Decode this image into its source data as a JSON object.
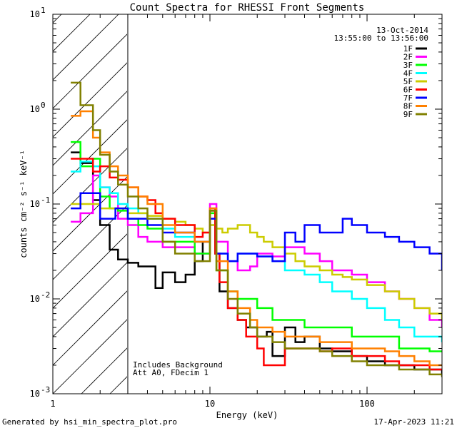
{
  "chart_data": {
    "type": "line",
    "step": true,
    "title": "Count Spectra for RHESSI Front Segments",
    "xlabel": "Energy (keV)",
    "ylabel": "counts cm⁻² s⁻¹ keV⁻¹",
    "xscale": "log",
    "yscale": "log",
    "xlim": [
      1,
      300
    ],
    "ylim": [
      0.001,
      10
    ],
    "x_ticks": [
      {
        "value": 1,
        "label": "1"
      },
      {
        "value": 10,
        "label": "10"
      },
      {
        "value": 100,
        "label": "100"
      }
    ],
    "y_ticks": [
      {
        "value": 0.001,
        "base": "10",
        "exp": "-3"
      },
      {
        "value": 0.01,
        "base": "10",
        "exp": "-2"
      },
      {
        "value": 0.1,
        "base": "10",
        "exp": "-1"
      },
      {
        "value": 1,
        "base": "10",
        "exp": "0"
      },
      {
        "value": 10,
        "base": "10",
        "exp": "1"
      }
    ],
    "hatched_region": [
      1,
      3
    ],
    "date": "13-Oct-2014",
    "time_range": "13:55:00 to 13:56:00",
    "notes": [
      "Includes Background",
      "Att A0, FDecim 1"
    ],
    "series": [
      {
        "name": "1F",
        "color": "#000000",
        "points": [
          [
            1.3,
            0.35
          ],
          [
            1.5,
            0.27
          ],
          [
            1.8,
            0.11
          ],
          [
            2.0,
            0.06
          ],
          [
            2.3,
            0.033
          ],
          [
            2.6,
            0.026
          ],
          [
            3.0,
            0.024
          ],
          [
            3.5,
            0.022
          ],
          [
            4.0,
            0.022
          ],
          [
            4.5,
            0.013
          ],
          [
            5.0,
            0.019
          ],
          [
            6.0,
            0.015
          ],
          [
            7.0,
            0.018
          ],
          [
            8.0,
            0.025
          ],
          [
            9.0,
            0.04
          ],
          [
            10.0,
            0.085
          ],
          [
            10.8,
            0.03
          ],
          [
            11.5,
            0.012
          ],
          [
            13,
            0.008
          ],
          [
            15,
            0.006
          ],
          [
            17,
            0.005
          ],
          [
            20,
            0.004
          ],
          [
            23,
            0.0045
          ],
          [
            25,
            0.0025
          ],
          [
            30,
            0.005
          ],
          [
            35,
            0.0035
          ],
          [
            40,
            0.004
          ],
          [
            50,
            0.003
          ],
          [
            60,
            0.0028
          ],
          [
            80,
            0.0025
          ],
          [
            100,
            0.0022
          ],
          [
            130,
            0.002
          ],
          [
            160,
            0.002
          ],
          [
            200,
            0.0018
          ],
          [
            250,
            0.0018
          ],
          [
            300,
            0.0016
          ]
        ]
      },
      {
        "name": "2F",
        "color": "#ff00ff",
        "points": [
          [
            1.3,
            0.065
          ],
          [
            1.5,
            0.08
          ],
          [
            1.8,
            0.2
          ],
          [
            2.0,
            0.15
          ],
          [
            2.3,
            0.12
          ],
          [
            2.6,
            0.07
          ],
          [
            3.0,
            0.06
          ],
          [
            3.5,
            0.045
          ],
          [
            4.0,
            0.04
          ],
          [
            5.0,
            0.035
          ],
          [
            6.0,
            0.035
          ],
          [
            8.0,
            0.03
          ],
          [
            10.0,
            0.1
          ],
          [
            11.0,
            0.04
          ],
          [
            13,
            0.025
          ],
          [
            15,
            0.02
          ],
          [
            18,
            0.022
          ],
          [
            20,
            0.03
          ],
          [
            25,
            0.028
          ],
          [
            30,
            0.035
          ],
          [
            40,
            0.03
          ],
          [
            50,
            0.025
          ],
          [
            60,
            0.02
          ],
          [
            80,
            0.018
          ],
          [
            100,
            0.015
          ],
          [
            130,
            0.012
          ],
          [
            160,
            0.01
          ],
          [
            200,
            0.008
          ],
          [
            250,
            0.006
          ],
          [
            300,
            0.005
          ]
        ]
      },
      {
        "name": "3F",
        "color": "#00ff00",
        "points": [
          [
            1.3,
            0.45
          ],
          [
            1.5,
            0.25
          ],
          [
            1.8,
            0.3
          ],
          [
            2.0,
            0.12
          ],
          [
            2.3,
            0.09
          ],
          [
            2.6,
            0.085
          ],
          [
            3.0,
            0.07
          ],
          [
            3.5,
            0.06
          ],
          [
            4.0,
            0.055
          ],
          [
            5.0,
            0.04
          ],
          [
            6.0,
            0.04
          ],
          [
            8.0,
            0.03
          ],
          [
            10.0,
            0.08
          ],
          [
            11,
            0.02
          ],
          [
            13,
            0.012
          ],
          [
            15,
            0.01
          ],
          [
            20,
            0.008
          ],
          [
            25,
            0.006
          ],
          [
            30,
            0.006
          ],
          [
            40,
            0.005
          ],
          [
            50,
            0.005
          ],
          [
            60,
            0.005
          ],
          [
            80,
            0.004
          ],
          [
            100,
            0.004
          ],
          [
            130,
            0.004
          ],
          [
            160,
            0.003
          ],
          [
            200,
            0.003
          ],
          [
            250,
            0.0028
          ],
          [
            300,
            0.0028
          ]
        ]
      },
      {
        "name": "4F",
        "color": "#00ffff",
        "points": [
          [
            1.3,
            0.22
          ],
          [
            1.5,
            0.28
          ],
          [
            1.8,
            0.25
          ],
          [
            2.0,
            0.15
          ],
          [
            2.3,
            0.13
          ],
          [
            2.6,
            0.1
          ],
          [
            3.0,
            0.09
          ],
          [
            3.5,
            0.08
          ],
          [
            4.0,
            0.07
          ],
          [
            5.0,
            0.055
          ],
          [
            6.0,
            0.045
          ],
          [
            8.0,
            0.04
          ],
          [
            10.0,
            0.06
          ],
          [
            11,
            0.03
          ],
          [
            13,
            0.025
          ],
          [
            15,
            0.03
          ],
          [
            18,
            0.03
          ],
          [
            20,
            0.028
          ],
          [
            25,
            0.025
          ],
          [
            30,
            0.02
          ],
          [
            40,
            0.018
          ],
          [
            50,
            0.015
          ],
          [
            60,
            0.012
          ],
          [
            80,
            0.01
          ],
          [
            100,
            0.008
          ],
          [
            130,
            0.006
          ],
          [
            160,
            0.005
          ],
          [
            200,
            0.004
          ],
          [
            250,
            0.004
          ],
          [
            300,
            0.0035
          ]
        ]
      },
      {
        "name": "5F",
        "color": "#cccc00",
        "points": [
          [
            1.3,
            0.1
          ],
          [
            1.5,
            0.1
          ],
          [
            1.8,
            0.1
          ],
          [
            2.0,
            0.09
          ],
          [
            2.5,
            0.09
          ],
          [
            3.0,
            0.08
          ],
          [
            3.5,
            0.08
          ],
          [
            4.0,
            0.075
          ],
          [
            5.0,
            0.07
          ],
          [
            6.0,
            0.065
          ],
          [
            7.0,
            0.06
          ],
          [
            8.0,
            0.055
          ],
          [
            9.0,
            0.05
          ],
          [
            10.0,
            0.06
          ],
          [
            11.0,
            0.055
          ],
          [
            12,
            0.05
          ],
          [
            13,
            0.055
          ],
          [
            15,
            0.06
          ],
          [
            18,
            0.05
          ],
          [
            20,
            0.045
          ],
          [
            22,
            0.04
          ],
          [
            25,
            0.035
          ],
          [
            30,
            0.03
          ],
          [
            35,
            0.025
          ],
          [
            40,
            0.022
          ],
          [
            50,
            0.02
          ],
          [
            60,
            0.018
          ],
          [
            70,
            0.017
          ],
          [
            80,
            0.016
          ],
          [
            100,
            0.014
          ],
          [
            130,
            0.012
          ],
          [
            160,
            0.01
          ],
          [
            200,
            0.008
          ],
          [
            250,
            0.007
          ],
          [
            300,
            0.006
          ]
        ]
      },
      {
        "name": "6F",
        "color": "#ff0000",
        "points": [
          [
            1.3,
            0.3
          ],
          [
            1.5,
            0.3
          ],
          [
            1.8,
            0.22
          ],
          [
            2.0,
            0.25
          ],
          [
            2.3,
            0.19
          ],
          [
            2.6,
            0.18
          ],
          [
            3.0,
            0.15
          ],
          [
            3.5,
            0.12
          ],
          [
            4.0,
            0.11
          ],
          [
            4.5,
            0.08
          ],
          [
            5.0,
            0.07
          ],
          [
            6.0,
            0.06
          ],
          [
            8.0,
            0.045
          ],
          [
            9.0,
            0.05
          ],
          [
            10.0,
            0.09
          ],
          [
            10.8,
            0.03
          ],
          [
            11.5,
            0.015
          ],
          [
            13,
            0.008
          ],
          [
            15,
            0.006
          ],
          [
            17,
            0.004
          ],
          [
            20,
            0.003
          ],
          [
            22,
            0.002
          ],
          [
            25,
            0.002
          ],
          [
            30,
            0.003
          ],
          [
            40,
            0.003
          ],
          [
            50,
            0.0028
          ],
          [
            60,
            0.003
          ],
          [
            80,
            0.0025
          ],
          [
            100,
            0.0025
          ],
          [
            130,
            0.0022
          ],
          [
            160,
            0.002
          ],
          [
            200,
            0.002
          ],
          [
            250,
            0.0018
          ],
          [
            300,
            0.0018
          ]
        ]
      },
      {
        "name": "7F",
        "color": "#0000ff",
        "points": [
          [
            1.3,
            0.09
          ],
          [
            1.5,
            0.13
          ],
          [
            1.8,
            0.13
          ],
          [
            2.0,
            0.07
          ],
          [
            2.5,
            0.09
          ],
          [
            3.0,
            0.07
          ],
          [
            3.5,
            0.07
          ],
          [
            4.0,
            0.06
          ],
          [
            5.0,
            0.05
          ],
          [
            6.0,
            0.05
          ],
          [
            8.0,
            0.04
          ],
          [
            10.0,
            0.07
          ],
          [
            11,
            0.03
          ],
          [
            13,
            0.025
          ],
          [
            15,
            0.03
          ],
          [
            18,
            0.03
          ],
          [
            20,
            0.028
          ],
          [
            25,
            0.025
          ],
          [
            30,
            0.05
          ],
          [
            35,
            0.04
          ],
          [
            40,
            0.06
          ],
          [
            50,
            0.05
          ],
          [
            60,
            0.05
          ],
          [
            70,
            0.07
          ],
          [
            80,
            0.06
          ],
          [
            100,
            0.05
          ],
          [
            130,
            0.045
          ],
          [
            160,
            0.04
          ],
          [
            200,
            0.035
          ],
          [
            250,
            0.03
          ],
          [
            300,
            0.02
          ]
        ]
      },
      {
        "name": "8F",
        "color": "#ff8000",
        "points": [
          [
            1.3,
            0.85
          ],
          [
            1.5,
            0.95
          ],
          [
            1.8,
            0.5
          ],
          [
            2.0,
            0.35
          ],
          [
            2.3,
            0.25
          ],
          [
            2.6,
            0.2
          ],
          [
            3.0,
            0.15
          ],
          [
            3.5,
            0.12
          ],
          [
            4.0,
            0.1
          ],
          [
            5.0,
            0.06
          ],
          [
            6.0,
            0.05
          ],
          [
            8.0,
            0.04
          ],
          [
            10.0,
            0.09
          ],
          [
            11,
            0.025
          ],
          [
            13,
            0.012
          ],
          [
            15,
            0.008
          ],
          [
            18,
            0.006
          ],
          [
            20,
            0.005
          ],
          [
            25,
            0.0045
          ],
          [
            30,
            0.004
          ],
          [
            40,
            0.004
          ],
          [
            50,
            0.0035
          ],
          [
            60,
            0.0035
          ],
          [
            80,
            0.003
          ],
          [
            100,
            0.003
          ],
          [
            130,
            0.0028
          ],
          [
            160,
            0.0025
          ],
          [
            200,
            0.0022
          ],
          [
            250,
            0.002
          ],
          [
            300,
            0.002
          ]
        ]
      },
      {
        "name": "9F",
        "color": "#808000",
        "points": [
          [
            1.3,
            1.9
          ],
          [
            1.5,
            1.1
          ],
          [
            1.8,
            0.6
          ],
          [
            2.0,
            0.33
          ],
          [
            2.3,
            0.22
          ],
          [
            2.6,
            0.16
          ],
          [
            3.0,
            0.12
          ],
          [
            3.5,
            0.09
          ],
          [
            4.0,
            0.07
          ],
          [
            5.0,
            0.04
          ],
          [
            6.0,
            0.03
          ],
          [
            8.0,
            0.025
          ],
          [
            10.0,
            0.085
          ],
          [
            11,
            0.02
          ],
          [
            13,
            0.01
          ],
          [
            15,
            0.007
          ],
          [
            18,
            0.005
          ],
          [
            20,
            0.004
          ],
          [
            25,
            0.0035
          ],
          [
            30,
            0.003
          ],
          [
            40,
            0.003
          ],
          [
            50,
            0.0028
          ],
          [
            60,
            0.0025
          ],
          [
            80,
            0.0022
          ],
          [
            100,
            0.002
          ],
          [
            130,
            0.002
          ],
          [
            160,
            0.0018
          ],
          [
            200,
            0.0018
          ],
          [
            250,
            0.0016
          ],
          [
            300,
            0.0015
          ]
        ]
      }
    ]
  },
  "footer": {
    "generated_by": "Generated by hsi_min_spectra_plot.pro",
    "timestamp": "17-Apr-2023 11:21"
  }
}
